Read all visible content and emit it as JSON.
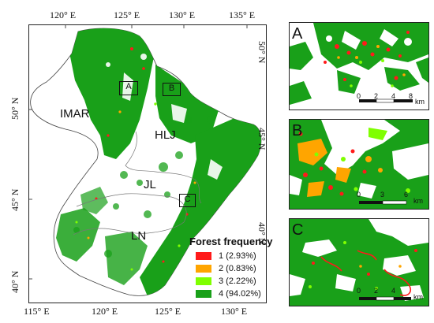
{
  "main_map": {
    "top_lon_labels": [
      "120° E",
      "125° E",
      "130° E",
      "135° E"
    ],
    "bottom_lon_labels": [
      "115° E",
      "120° E",
      "125° E",
      "130° E"
    ],
    "left_lat_labels": [
      "50° N",
      "45° N",
      "40° N"
    ],
    "right_lat_labels": [
      "50° N",
      "45° N",
      "40° N"
    ],
    "regions": [
      "IMAR",
      "HLJ",
      "JL",
      "LN"
    ],
    "box_labels": [
      "A",
      "B",
      "C"
    ]
  },
  "legend": {
    "title": "Forest frequency",
    "items": [
      {
        "label": "1 (2.93%)",
        "color": "#ff1a1a",
        "value": 2.93
      },
      {
        "label": "2 (0.83%)",
        "color": "#ffa500",
        "value": 0.83
      },
      {
        "label": "3 (2.22%)",
        "color": "#7fff00",
        "value": 2.22
      },
      {
        "label": "4 (94.02%)",
        "color": "#19a019",
        "value": 94.02
      }
    ]
  },
  "insets": [
    {
      "letter": "A",
      "ticks": [
        "0",
        "2",
        "4",
        "8"
      ],
      "unit": "km"
    },
    {
      "letter": "B",
      "ticks": [
        "0",
        "3",
        "6"
      ],
      "unit": "km"
    },
    {
      "letter": "C",
      "ticks": [
        "0",
        "2",
        "4"
      ],
      "unit": "km"
    }
  ],
  "colors": {
    "forest": "#19a019",
    "freq1": "#ff1a1a",
    "freq2": "#ffa500",
    "freq3": "#7fff00",
    "boundary": "#555555"
  }
}
